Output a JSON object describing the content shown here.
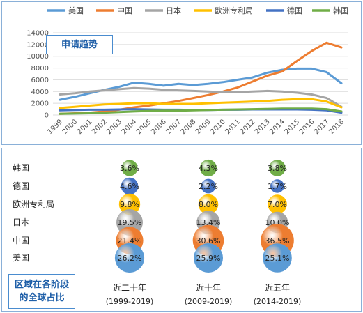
{
  "chart_data": [
    {
      "type": "line",
      "title_box": "申请趋势",
      "x": [
        "1999",
        "2000",
        "2001",
        "2002",
        "2003",
        "2004",
        "2005",
        "2006",
        "2007",
        "2008",
        "2009",
        "2010",
        "2011",
        "2012",
        "2013",
        "2014",
        "2015",
        "2016",
        "2017",
        "2018"
      ],
      "ylim": [
        0,
        14000
      ],
      "yticks": [
        "14000",
        "12000",
        "10000",
        "8000",
        "6000",
        "4000",
        "2000",
        "0"
      ],
      "legend_position": "top",
      "series": [
        {
          "name": "美国",
          "color": "#5b9bd5",
          "values": [
            2600,
            3100,
            3700,
            4300,
            4800,
            5500,
            5300,
            5000,
            5300,
            5100,
            5300,
            5600,
            6000,
            6400,
            7200,
            7700,
            7900,
            7900,
            7300,
            5400
          ]
        },
        {
          "name": "中国",
          "color": "#ed7d31",
          "values": [
            200,
            300,
            400,
            600,
            900,
            1300,
            1600,
            2000,
            2400,
            2900,
            3400,
            4000,
            4700,
            5700,
            6700,
            7400,
            9200,
            10900,
            12300,
            11500
          ]
        },
        {
          "name": "日本",
          "color": "#a5a5a5",
          "values": [
            3500,
            3700,
            4000,
            4200,
            4400,
            4600,
            4500,
            4300,
            4200,
            4100,
            4000,
            3900,
            3900,
            4000,
            4100,
            4000,
            3800,
            3500,
            2900,
            1400
          ]
        },
        {
          "name": "欧洲专利局",
          "color": "#ffc000",
          "values": [
            1200,
            1400,
            1600,
            1800,
            1900,
            2000,
            2000,
            1900,
            1900,
            1900,
            2000,
            2100,
            2200,
            2300,
            2400,
            2600,
            2700,
            2700,
            2300,
            1300
          ]
        },
        {
          "name": "德国",
          "color": "#4472c4",
          "values": [
            800,
            850,
            900,
            900,
            950,
            1000,
            950,
            900,
            900,
            850,
            850,
            900,
            900,
            950,
            950,
            950,
            950,
            900,
            800,
            400
          ]
        },
        {
          "name": "韩国",
          "color": "#70ad47",
          "values": [
            200,
            250,
            300,
            400,
            500,
            600,
            700,
            750,
            750,
            800,
            850,
            900,
            950,
            1000,
            1050,
            1100,
            1100,
            1100,
            1000,
            600
          ]
        }
      ]
    },
    {
      "type": "table",
      "title_box": "区域在各阶段的全球占比",
      "rows": [
        {
          "name": "韩国",
          "color": "#70ad47",
          "values": [
            "3.6%",
            "4.3%",
            "3.8%"
          ],
          "numbers": [
            3.6,
            4.3,
            3.8
          ]
        },
        {
          "name": "德国",
          "color": "#4472c4",
          "values": [
            "4.6%",
            "2.2%",
            "1.7%"
          ],
          "numbers": [
            4.6,
            2.2,
            1.7
          ]
        },
        {
          "name": "欧洲专利局",
          "color": "#ffc000",
          "values": [
            "9.8%",
            "8.0%",
            "7.0%"
          ],
          "numbers": [
            9.8,
            8.0,
            7.0
          ]
        },
        {
          "name": "日本",
          "color": "#a5a5a5",
          "values": [
            "19.5%",
            "13.4%",
            "10.0%"
          ],
          "numbers": [
            19.5,
            13.4,
            10.0
          ]
        },
        {
          "name": "中国",
          "color": "#ed7d31",
          "values": [
            "21.4%",
            "30.6%",
            "36.5%"
          ],
          "numbers": [
            21.4,
            30.6,
            36.5
          ]
        },
        {
          "name": "美国",
          "color": "#5b9bd5",
          "values": [
            "26.2%",
            "25.9%",
            "25.1%"
          ],
          "numbers": [
            26.2,
            25.9,
            25.1
          ]
        }
      ],
      "columns": [
        {
          "label": "近二十年",
          "sub": "(1999-2019)"
        },
        {
          "label": "近十年",
          "sub": "(2009-2019)"
        },
        {
          "label": "近五年",
          "sub": "(2014-2019)"
        }
      ]
    }
  ]
}
